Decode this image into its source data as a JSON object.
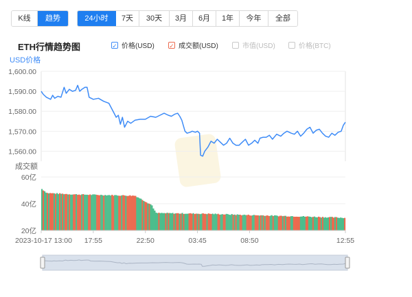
{
  "chart_type_tabs": [
    {
      "label": "K线",
      "active": false
    },
    {
      "label": "趋势",
      "active": true
    }
  ],
  "range_tabs": [
    {
      "label": "24小时",
      "active": true
    },
    {
      "label": "7天",
      "active": false
    },
    {
      "label": "30天",
      "active": false
    },
    {
      "label": "3月",
      "active": false
    },
    {
      "label": "6月",
      "active": false
    },
    {
      "label": "1年",
      "active": false
    },
    {
      "label": "今年",
      "active": false
    },
    {
      "label": "全部",
      "active": false
    }
  ],
  "legend": [
    {
      "label": "价格(USD)",
      "checked": true,
      "color": "#3d8bf7"
    },
    {
      "label": "成交额(USD)",
      "checked": true,
      "color": "#ec6a4e"
    },
    {
      "label": "市值(USD)",
      "checked": false,
      "color": "#c9c9c9"
    },
    {
      "label": "价格(BTC)",
      "checked": false,
      "color": "#c9c9c9"
    }
  ],
  "colors": {
    "accent": "#1e7ef0",
    "price_line": "#3d8bf7",
    "volume_up": "#4dbd8c",
    "volume_down": "#ec6a4e",
    "axis_text": "#666666",
    "ylabel_text": "#3d8bf7",
    "navigator_fill": "#d9e1ec"
  },
  "chart_data": {
    "type": "line",
    "title": "ETH行情趋势图",
    "price": {
      "ylabel": "USD价格",
      "ylim": [
        1555,
        1600
      ],
      "yticks": [
        "1,600.00",
        "1,590.00",
        "1,580.00",
        "1,570.00",
        "1,560.00"
      ],
      "ytick_values": [
        1600,
        1590,
        1580,
        1570,
        1560
      ],
      "points": [
        [
          0,
          1590
        ],
        [
          0.02,
          1588.5
        ],
        [
          0.05,
          1587
        ],
        [
          0.09,
          1586
        ],
        [
          0.11,
          1588
        ],
        [
          0.13,
          1586.5
        ],
        [
          0.16,
          1587.5
        ],
        [
          0.19,
          1587
        ],
        [
          0.22,
          1592
        ],
        [
          0.24,
          1589
        ],
        [
          0.27,
          1591
        ],
        [
          0.3,
          1590
        ],
        [
          0.33,
          1590.5
        ],
        [
          0.35,
          1593
        ],
        [
          0.37,
          1590
        ],
        [
          0.39,
          1591
        ],
        [
          0.42,
          1592
        ],
        [
          0.44,
          1592
        ],
        [
          0.46,
          1587
        ],
        [
          0.5,
          1586
        ],
        [
          0.55,
          1586.5
        ],
        [
          0.6,
          1585
        ],
        [
          0.65,
          1584
        ],
        [
          0.7,
          1579
        ],
        [
          0.72,
          1577
        ],
        [
          0.74,
          1578
        ],
        [
          0.76,
          1573.5
        ],
        [
          0.78,
          1577
        ],
        [
          0.8,
          1572
        ],
        [
          0.83,
          1575
        ],
        [
          0.86,
          1574
        ],
        [
          0.9,
          1575.5
        ],
        [
          0.95,
          1576
        ],
        [
          1.0,
          1576
        ],
        [
          1.05,
          1577.5
        ],
        [
          1.1,
          1577
        ],
        [
          1.14,
          1578
        ],
        [
          1.18,
          1579
        ],
        [
          1.22,
          1578
        ],
        [
          1.25,
          1577.5
        ],
        [
          1.28,
          1578.5
        ],
        [
          1.31,
          1579
        ],
        [
          1.33,
          1577.5
        ],
        [
          1.35,
          1575.5
        ],
        [
          1.38,
          1570
        ],
        [
          1.4,
          1569
        ],
        [
          1.43,
          1569.5
        ],
        [
          1.45,
          1570
        ],
        [
          1.48,
          1569.5
        ],
        [
          1.5,
          1570
        ],
        [
          1.52,
          1569
        ],
        [
          1.53,
          1558
        ],
        [
          1.55,
          1557.5
        ],
        [
          1.57,
          1560
        ],
        [
          1.6,
          1562
        ],
        [
          1.63,
          1565
        ],
        [
          1.66,
          1564
        ],
        [
          1.69,
          1566
        ],
        [
          1.72,
          1564.5
        ],
        [
          1.75,
          1563
        ],
        [
          1.78,
          1564
        ],
        [
          1.81,
          1566.5
        ],
        [
          1.84,
          1564
        ],
        [
          1.87,
          1563
        ],
        [
          1.9,
          1563
        ],
        [
          1.93,
          1564.5
        ],
        [
          1.96,
          1566
        ],
        [
          1.99,
          1563
        ],
        [
          2.02,
          1564
        ],
        [
          2.05,
          1565.5
        ],
        [
          2.08,
          1564
        ],
        [
          2.1,
          1566.5
        ],
        [
          2.13,
          1567
        ],
        [
          2.16,
          1567
        ],
        [
          2.19,
          1568
        ],
        [
          2.22,
          1566
        ],
        [
          2.26,
          1568.5
        ],
        [
          2.3,
          1567.5
        ],
        [
          2.33,
          1569
        ],
        [
          2.36,
          1570
        ],
        [
          2.4,
          1569
        ],
        [
          2.43,
          1568.5
        ],
        [
          2.46,
          1570
        ],
        [
          2.49,
          1567.5
        ],
        [
          2.52,
          1569
        ],
        [
          2.55,
          1571
        ],
        [
          2.58,
          1572
        ],
        [
          2.61,
          1569
        ],
        [
          2.64,
          1570.5
        ],
        [
          2.67,
          1571
        ],
        [
          2.7,
          1569
        ],
        [
          2.73,
          1567.5
        ],
        [
          2.76,
          1567
        ],
        [
          2.79,
          1569
        ],
        [
          2.82,
          1568
        ],
        [
          2.85,
          1569.5
        ],
        [
          2.88,
          1570
        ],
        [
          2.9,
          1573
        ],
        [
          2.92,
          1574.5
        ]
      ]
    },
    "volume": {
      "ylabel": "成交额",
      "ylim": [
        20,
        60
      ],
      "yticks": [
        "60亿",
        "40亿",
        "20亿"
      ],
      "ytick_values": [
        60,
        40,
        20
      ],
      "series": [
        {
          "name": "",
          "x_range": [
            0,
            2.92
          ],
          "levels": [
            [
              0,
              51
            ],
            [
              0.05,
              48
            ],
            [
              0.3,
              47
            ],
            [
              0.9,
              46
            ],
            [
              1.06,
              39
            ],
            [
              1.1,
              33
            ],
            [
              1.6,
              32.5
            ],
            [
              2.0,
              31.5
            ],
            [
              2.5,
              30.5
            ],
            [
              2.92,
              29.5
            ]
          ]
        }
      ]
    },
    "x_ticks": [
      "2023-10-17 13:00",
      "17:55",
      "22:50",
      "03:45",
      "08:50",
      "12:55"
    ],
    "x_tick_values": [
      0,
      0.5,
      1.0,
      1.5,
      2.0,
      2.92
    ]
  }
}
